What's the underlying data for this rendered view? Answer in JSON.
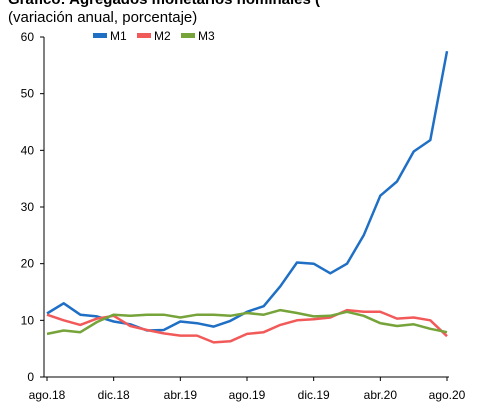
{
  "chart_data": {
    "type": "line",
    "title": "Gráfico: Agregados monetarios nominales (",
    "subtitle": "(variación anual, porcentaje)",
    "categories": [
      "ago.18",
      null,
      null,
      null,
      "dic.18",
      null,
      null,
      null,
      "abr.19",
      null,
      null,
      null,
      "ago.19",
      null,
      null,
      null,
      "dic.19",
      null,
      null,
      null,
      "abr.20",
      null,
      null,
      null,
      "ago.20"
    ],
    "series": [
      {
        "name": "M1",
        "color": "#1f6fc5",
        "values": [
          11.2,
          13,
          11,
          10.7,
          9.8,
          9.3,
          8.2,
          8.3,
          9.8,
          9.5,
          8.9,
          9.9,
          11.5,
          12.5,
          16,
          20.2,
          20,
          18.3,
          20,
          25,
          32,
          34.5,
          39.8,
          41.8,
          57.5
        ]
      },
      {
        "name": "M2",
        "color": "#f25a5a",
        "values": [
          11,
          10,
          9.2,
          10.3,
          10.8,
          9,
          8.3,
          7.7,
          7.3,
          7.3,
          6.1,
          6.3,
          7.6,
          7.9,
          9.2,
          10,
          10.2,
          10.5,
          11.8,
          11.5,
          11.5,
          10.3,
          10.5,
          10,
          7.2
        ]
      },
      {
        "name": "M3",
        "color": "#76a33a",
        "values": [
          7.6,
          8.2,
          7.9,
          9.7,
          11,
          10.8,
          11,
          11,
          10.5,
          11,
          11,
          10.8,
          11.3,
          11,
          11.8,
          11.3,
          10.7,
          10.8,
          11.5,
          10.8,
          9.5,
          9,
          9.3,
          8.5,
          7.9
        ]
      }
    ],
    "ylim": [
      0,
      60
    ],
    "yticks": [
      0,
      10,
      20,
      30,
      40,
      50,
      60
    ],
    "grid": false,
    "legend": "top"
  }
}
